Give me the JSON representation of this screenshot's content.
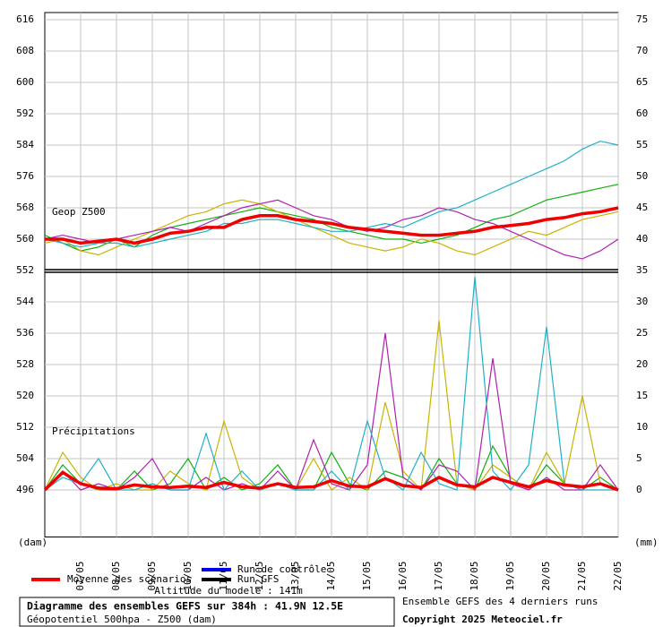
{
  "chart_data": {
    "type": "line",
    "panel_labels": [
      "Geop Z500",
      "Précipitations"
    ],
    "y_unit": "(dam)",
    "y2_unit": "(mm)",
    "xlim": [
      0,
      384
    ],
    "xticks": [
      {
        "value": 24,
        "label": "07/05"
      },
      {
        "value": 48,
        "label": "08/05"
      },
      {
        "value": 72,
        "label": "09/05"
      },
      {
        "value": 96,
        "label": "10/05"
      },
      {
        "value": 120,
        "label": "11/05"
      },
      {
        "value": 144,
        "label": "12/05"
      },
      {
        "value": 168,
        "label": "13/05"
      },
      {
        "value": 192,
        "label": "14/05"
      },
      {
        "value": 216,
        "label": "15/05"
      },
      {
        "value": 240,
        "label": "16/05"
      },
      {
        "value": 264,
        "label": "17/05"
      },
      {
        "value": 288,
        "label": "18/05"
      },
      {
        "value": 312,
        "label": "19/05"
      },
      {
        "value": 336,
        "label": "20/05"
      },
      {
        "value": 360,
        "label": "21/05"
      },
      {
        "value": 384,
        "label": "22/05"
      }
    ],
    "ylim": [
      484,
      616
    ],
    "yticks": [
      496,
      504,
      512,
      520,
      528,
      536,
      544,
      552,
      560,
      568,
      576,
      584,
      592,
      600,
      608,
      616
    ],
    "y2lim": [
      -7.5,
      75
    ],
    "y2ticks": [
      0,
      5,
      10,
      15,
      20,
      25,
      30,
      35,
      40,
      45,
      50,
      55,
      60,
      65,
      70,
      75
    ],
    "panel_split": 552,
    "grid": true,
    "x": [
      0,
      12,
      24,
      36,
      48,
      60,
      72,
      84,
      96,
      108,
      120,
      132,
      144,
      156,
      168,
      180,
      192,
      204,
      216,
      228,
      240,
      252,
      264,
      276,
      288,
      300,
      312,
      324,
      336,
      348,
      360,
      372,
      384
    ],
    "series": [
      {
        "color": "#10b010",
        "values": [
          561,
          559,
          557,
          558,
          560,
          558,
          561,
          563,
          564,
          565,
          566,
          567,
          568,
          567,
          566,
          565,
          563,
          562,
          561,
          560,
          560,
          559,
          560,
          561,
          563,
          565,
          566,
          568,
          570,
          571,
          572,
          573,
          574
        ]
      },
      {
        "color": "#c8b400",
        "values": [
          559,
          560,
          557,
          556,
          558,
          560,
          562,
          564,
          566,
          567,
          569,
          570,
          569,
          567,
          565,
          563,
          561,
          559,
          558,
          557,
          558,
          560,
          559,
          557,
          556,
          558,
          560,
          562,
          561,
          563,
          565,
          566,
          567
        ]
      },
      {
        "color": "#b020b0",
        "values": [
          560,
          561,
          560,
          559,
          560,
          561,
          562,
          563,
          562,
          564,
          566,
          568,
          569,
          570,
          568,
          566,
          565,
          563,
          562,
          563,
          565,
          566,
          568,
          567,
          565,
          564,
          562,
          560,
          558,
          556,
          555,
          557,
          560
        ]
      },
      {
        "color": "#20b0c8",
        "values": [
          560,
          559,
          558,
          559,
          559,
          558,
          559,
          560,
          561,
          562,
          564,
          564,
          565,
          565,
          564,
          563,
          562,
          562,
          563,
          564,
          563,
          565,
          567,
          568,
          570,
          572,
          574,
          576,
          578,
          580,
          583,
          585,
          584
        ]
      },
      {
        "name": "Moyenne des scénarios",
        "color": "#ee0000",
        "width": 3.5,
        "values": [
          560,
          560,
          559,
          559.5,
          560,
          559,
          560,
          561.5,
          562,
          563,
          563,
          565,
          566,
          566,
          565,
          564.5,
          564,
          563,
          562.5,
          562,
          561.5,
          561,
          561,
          561.5,
          562,
          563,
          563.5,
          564,
          565,
          565.5,
          566.5,
          567,
          568
        ]
      },
      {
        "color": "#10b010",
        "axis": "y2",
        "values": [
          0,
          4,
          1,
          0,
          0,
          3,
          0,
          1,
          5,
          0,
          2,
          0,
          1,
          4,
          0,
          0,
          6,
          1,
          0,
          3,
          2,
          0,
          5,
          1,
          0,
          7,
          2,
          0,
          4,
          1,
          0,
          2,
          0
        ]
      },
      {
        "color": "#c8b400",
        "axis": "y2",
        "values": [
          0,
          6,
          2,
          0,
          1,
          0,
          0,
          3,
          1,
          0,
          11,
          2,
          0,
          1,
          0,
          5,
          0,
          2,
          0,
          14,
          3,
          0,
          27,
          1,
          0,
          4,
          2,
          0,
          6,
          1,
          15,
          1,
          0
        ]
      },
      {
        "color": "#b020b0",
        "axis": "y2",
        "values": [
          0,
          3,
          0,
          1,
          0,
          2,
          5,
          0,
          0,
          2,
          0,
          1,
          0,
          3,
          0,
          8,
          1,
          0,
          4,
          25,
          2,
          0,
          4,
          3,
          0,
          21,
          1,
          0,
          2,
          0,
          0,
          4,
          0
        ]
      },
      {
        "color": "#20b0c8",
        "axis": "y2",
        "values": [
          0,
          2,
          1,
          5,
          0,
          0,
          1,
          0,
          0,
          9,
          0,
          3,
          0,
          1,
          0,
          0,
          3,
          0,
          11,
          2,
          0,
          6,
          1,
          0,
          34,
          3,
          0,
          4,
          26,
          1,
          0,
          0,
          0
        ]
      },
      {
        "color": "#ee0000",
        "axis": "y2",
        "width": 3.5,
        "values": [
          0,
          2.8,
          1,
          0.3,
          0.2,
          0.8,
          0.5,
          0.4,
          0.6,
          0.4,
          1.2,
          0.5,
          0.3,
          1,
          0.4,
          0.5,
          1.5,
          0.6,
          0.5,
          1.8,
          0.7,
          0.4,
          2,
          0.8,
          0.5,
          2,
          1.2,
          0.5,
          1.5,
          0.8,
          0.5,
          1,
          0
        ]
      }
    ],
    "legend_extra": [
      {
        "name": "Run de contrôle",
        "color": "#0000ee"
      },
      {
        "name": "Run GFS",
        "color": "#000000"
      }
    ],
    "altitude_note": "Altitude du modele : 141m",
    "title_lines": [
      "Diagramme des ensembles GEFS sur 384h : 41.9N 12.5E",
      "Géopotentiel 500hpa - Z500 (dam)"
    ],
    "side_notes": [
      "Ensemble GEFS des 4 derniers runs",
      "Copyright 2025 Meteociel.fr"
    ]
  }
}
